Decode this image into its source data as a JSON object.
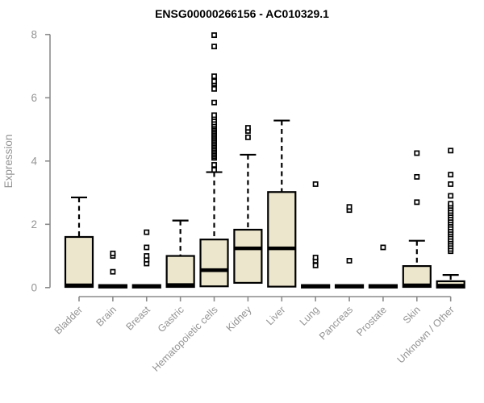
{
  "chart_data": {
    "type": "boxplot",
    "title": "ENSG00000266156 - AC010329.1",
    "xlabel": "",
    "ylabel": "Expression",
    "ylim": [
      0,
      8
    ],
    "yticks": [
      0,
      2,
      4,
      6,
      8
    ],
    "grid": false,
    "legend": "none",
    "categories": [
      "Bladder",
      "Brain",
      "Breast",
      "Gastric",
      "Hematopoietic cells",
      "Kidney",
      "Liver",
      "Lung",
      "Pancreas",
      "Prostate",
      "Skin",
      "Unknown / Other"
    ],
    "boxes": [
      {
        "category": "Bladder",
        "q1": 0.02,
        "median": 0.07,
        "q3": 1.6,
        "whisker_low": 0.02,
        "whisker_high": 2.85,
        "outliers": []
      },
      {
        "category": "Brain",
        "q1": 0.0,
        "median": 0.04,
        "q3": 0.08,
        "whisker_low": 0.0,
        "whisker_high": 0.08,
        "outliers": [
          0.5,
          1.0,
          1.08
        ]
      },
      {
        "category": "Breast",
        "q1": 0.0,
        "median": 0.04,
        "q3": 0.08,
        "whisker_low": 0.0,
        "whisker_high": 0.08,
        "outliers": [
          0.76,
          0.88,
          1.0,
          1.27,
          1.75
        ]
      },
      {
        "category": "Gastric",
        "q1": 0.02,
        "median": 0.08,
        "q3": 1.0,
        "whisker_low": 0.02,
        "whisker_high": 2.12,
        "outliers": []
      },
      {
        "category": "Hematopoietic cells",
        "q1": 0.04,
        "median": 0.55,
        "q3": 1.52,
        "whisker_low": 0.04,
        "whisker_high": 3.65,
        "outliers": [
          3.72,
          3.88,
          4.1,
          4.15,
          4.2,
          4.25,
          4.3,
          4.35,
          4.4,
          4.45,
          4.5,
          4.55,
          4.6,
          4.65,
          4.7,
          4.75,
          4.8,
          4.85,
          4.9,
          4.95,
          5.0,
          5.05,
          5.1,
          5.15,
          5.22,
          5.3,
          5.38,
          5.45,
          5.85,
          6.28,
          6.45,
          6.52,
          6.68,
          7.62,
          7.98
        ]
      },
      {
        "category": "Kidney",
        "q1": 0.15,
        "median": 1.24,
        "q3": 1.83,
        "whisker_low": 0.15,
        "whisker_high": 4.2,
        "outliers": [
          4.75,
          4.95,
          5.05
        ]
      },
      {
        "category": "Liver",
        "q1": 0.03,
        "median": 1.24,
        "q3": 3.02,
        "whisker_low": 0.03,
        "whisker_high": 5.28,
        "outliers": []
      },
      {
        "category": "Lung",
        "q1": 0.0,
        "median": 0.04,
        "q3": 0.08,
        "whisker_low": 0.0,
        "whisker_high": 0.08,
        "outliers": [
          0.7,
          0.85,
          0.95,
          3.27
        ]
      },
      {
        "category": "Pancreas",
        "q1": 0.0,
        "median": 0.04,
        "q3": 0.08,
        "whisker_low": 0.0,
        "whisker_high": 0.08,
        "outliers": [
          0.85,
          2.45,
          2.55
        ]
      },
      {
        "category": "Prostate",
        "q1": 0.0,
        "median": 0.04,
        "q3": 0.08,
        "whisker_low": 0.0,
        "whisker_high": 0.08,
        "outliers": [
          1.27
        ]
      },
      {
        "category": "Skin",
        "q1": 0.02,
        "median": 0.07,
        "q3": 0.68,
        "whisker_low": 0.02,
        "whisker_high": 1.48,
        "outliers": [
          2.7,
          3.5,
          4.25
        ]
      },
      {
        "category": "Unknown / Other",
        "q1": 0.0,
        "median": 0.06,
        "q3": 0.2,
        "whisker_low": 0.0,
        "whisker_high": 0.4,
        "outliers": [
          1.15,
          1.22,
          1.3,
          1.38,
          1.45,
          1.52,
          1.6,
          1.68,
          1.75,
          1.82,
          1.9,
          1.98,
          2.05,
          2.12,
          2.2,
          2.28,
          2.35,
          2.42,
          2.5,
          2.58,
          2.65,
          2.9,
          3.27,
          3.57,
          4.33
        ]
      }
    ],
    "colors": {
      "box_fill": "#ece7cc",
      "box_border": "#000000",
      "median": "#000000",
      "whisker": "#000000",
      "outlier_stroke": "#000000",
      "outlier_fill": "#ffffff",
      "axis_line": "#8c8c8c",
      "tick_label": "#949494",
      "title": "#000000",
      "background": "#ffffff"
    }
  }
}
